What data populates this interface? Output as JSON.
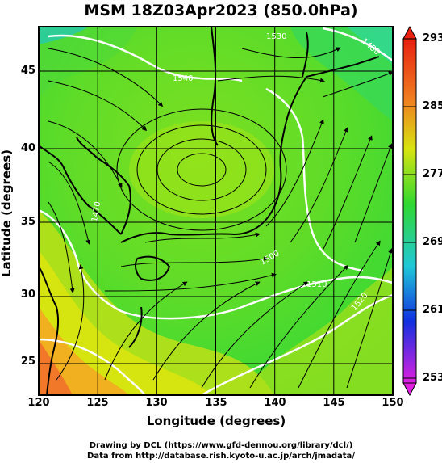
{
  "title": "MSM 18Z03Apr2023 (850.0hPa)",
  "xlabel": "Longitude (degrees)",
  "ylabel": "Latitude  (degrees)",
  "x_ticks": [
    "120",
    "125",
    "130",
    "135",
    "140",
    "145",
    "150"
  ],
  "y_ticks": [
    "45",
    "40",
    "35",
    "30",
    "25"
  ],
  "colorbar_ticks": [
    "293",
    "285",
    "277",
    "269",
    "261",
    "253"
  ],
  "contour_labels": [
    "1470",
    "1480",
    "1500",
    "1510",
    "1520",
    "1530",
    "1540"
  ],
  "credits": {
    "line1": "Drawing by DCL (https://www.gfd-dennou.org/library/dcl/)",
    "line2": "Data from http://database.rish.kyoto-u.ac.jp/arch/jmadata/"
  },
  "colors": {
    "warm": "#f07828",
    "yellow": "#d8e410",
    "green": "#30d830",
    "cyan": "#20c8d8",
    "blue": "#1020d0",
    "magenta": "#e020e0"
  },
  "chart_data": {
    "type": "heatmap",
    "variable": "temperature with streamlines and height contours",
    "xlim": [
      120,
      150
    ],
    "ylim": [
      23,
      48
    ],
    "colorbar_range": [
      253,
      293
    ],
    "grid": true
  }
}
